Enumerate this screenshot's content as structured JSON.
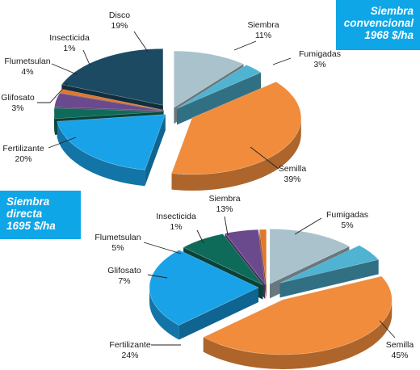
{
  "titles": {
    "chart1": [
      "Siembra",
      "convencional",
      "1968 $/ha"
    ],
    "chart2": [
      "Siembra",
      "directa",
      "1695 $/ha"
    ]
  },
  "chart_data": [
    {
      "type": "pie",
      "title": "Siembra convencional 1968 $/ha",
      "slices": [
        {
          "name": "Siembra",
          "value": 11,
          "label": "11%",
          "color": "#a9c2cb"
        },
        {
          "name": "Fumigadas",
          "value": 3,
          "label": "3%",
          "color": "#4fb3d1"
        },
        {
          "name": "Semilla",
          "value": 39,
          "label": "39%",
          "color": "#f08c3c"
        },
        {
          "name": "Fertilizante",
          "value": 20,
          "label": "20%",
          "color": "#1aa2e8"
        },
        {
          "name": "Glifosato",
          "value": 3,
          "label": "3%",
          "color": "#0e6b5a"
        },
        {
          "name": "Flumetsulan",
          "value": 4,
          "label": "4%",
          "color": "#6a4a8c"
        },
        {
          "name": "Insecticida",
          "value": 1,
          "label": "1%",
          "color": "#e0772a"
        },
        {
          "name": "Disco",
          "value": 19,
          "label": "19%",
          "color": "#1c4a63"
        }
      ]
    },
    {
      "type": "pie",
      "title": "Siembra directa 1695 $/ha",
      "slices": [
        {
          "name": "Siembra",
          "value": 13,
          "label": "13%",
          "color": "#a9c2cb"
        },
        {
          "name": "Fumigadas",
          "value": 5,
          "label": "5%",
          "color": "#4fb3d1"
        },
        {
          "name": "Semilla",
          "value": 45,
          "label": "45%",
          "color": "#f08c3c"
        },
        {
          "name": "Fertilizante",
          "value": 24,
          "label": "24%",
          "color": "#1aa2e8"
        },
        {
          "name": "Glifosato",
          "value": 7,
          "label": "7%",
          "color": "#0e6b5a"
        },
        {
          "name": "Flumetsulan",
          "value": 5,
          "label": "5%",
          "color": "#6a4a8c"
        },
        {
          "name": "Insecticida",
          "value": 1,
          "label": "1%",
          "color": "#e0772a"
        }
      ]
    }
  ]
}
